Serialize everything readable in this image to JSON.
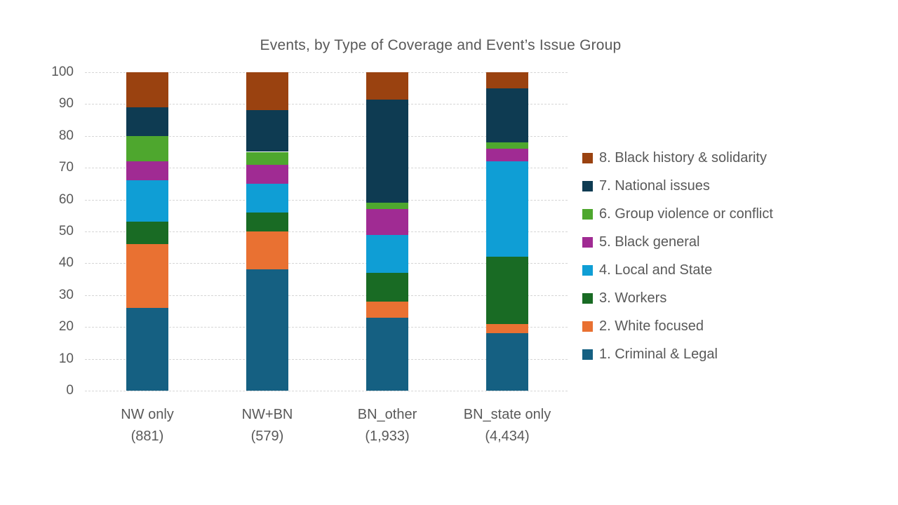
{
  "chart_data": {
    "type": "bar",
    "stacked": true,
    "percent_scale": true,
    "title": "Events, by Type of Coverage and Event’s Issue Group",
    "categories": [
      {
        "label": "NW only",
        "count_label": "(881)"
      },
      {
        "label": "NW+BN",
        "count_label": "(579)"
      },
      {
        "label": "BN_other",
        "count_label": "(1,933)"
      },
      {
        "label": "BN_state only",
        "count_label": "(4,434)"
      }
    ],
    "series": [
      {
        "name": "1. Criminal & Legal",
        "color": "#156082",
        "values": [
          26,
          38,
          23,
          18
        ]
      },
      {
        "name": "2. White focused",
        "color": "#E97132",
        "values": [
          20,
          12,
          5,
          3
        ]
      },
      {
        "name": "3. Workers",
        "color": "#196B24",
        "values": [
          7,
          6,
          9,
          21
        ]
      },
      {
        "name": "4. Local and State",
        "color": "#0F9ED5",
        "values": [
          13,
          9,
          12,
          30
        ]
      },
      {
        "name": "5. Black general",
        "color": "#A02B93",
        "values": [
          6,
          6,
          8,
          4
        ]
      },
      {
        "name": "6. Group violence or conflict",
        "color": "#4EA72E",
        "values": [
          8,
          4,
          2,
          2
        ]
      },
      {
        "name": "7. National issues",
        "color": "#0E3B52",
        "values": [
          9,
          13,
          32.5,
          17
        ]
      },
      {
        "name": "8. Black history & solidarity",
        "color": "#9A4210",
        "values": [
          11,
          12,
          8.5,
          5
        ]
      }
    ],
    "y_axis": {
      "min": 0,
      "max": 100,
      "step": 10,
      "tick_labels": [
        "0",
        "10",
        "20",
        "30",
        "40",
        "50",
        "60",
        "70",
        "80",
        "90",
        "100"
      ]
    },
    "legend": {
      "position": "right",
      "order": "top-to-bottom is series 8 → 1"
    },
    "grid": true
  },
  "colors": {
    "text": "#595959",
    "gridline": "#D6D6D6",
    "background": "#FFFFFF"
  }
}
